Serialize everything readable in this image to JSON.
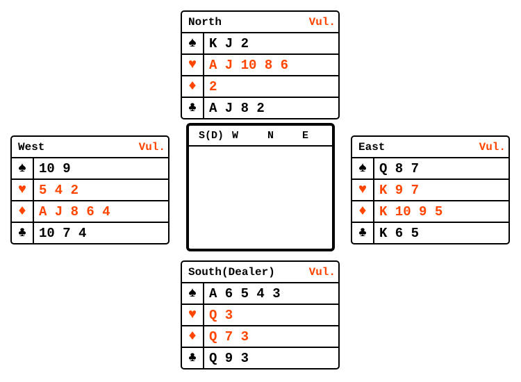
{
  "colors": {
    "red_suit": "#ff4500",
    "black_suit": "#000000"
  },
  "suits": {
    "spades": "♠",
    "hearts": "♥",
    "diamonds": "♦",
    "clubs": "♣"
  },
  "north": {
    "label": "North",
    "vul": "Vul.",
    "spades": "K J 2",
    "hearts": "A J 10 8 6",
    "diamonds": "2",
    "clubs": "A J 8 2"
  },
  "west": {
    "label": "West",
    "vul": "Vul.",
    "spades": "10 9",
    "hearts": "5 4 2",
    "diamonds": "A J 8 6 4",
    "clubs": "10 7 4"
  },
  "east": {
    "label": "East",
    "vul": "Vul.",
    "spades": "Q 8 7",
    "hearts": "K 9 7",
    "diamonds": "K 10 9 5",
    "clubs": "K 6 5"
  },
  "south": {
    "label": "South(Dealer)",
    "vul": "Vul.",
    "spades": "A 6 5 4 3",
    "hearts": "Q 3",
    "diamonds": "Q 7 3",
    "clubs": "Q 9 3"
  },
  "auction": {
    "columns": [
      "S(D)",
      "W",
      "N",
      "E"
    ]
  }
}
